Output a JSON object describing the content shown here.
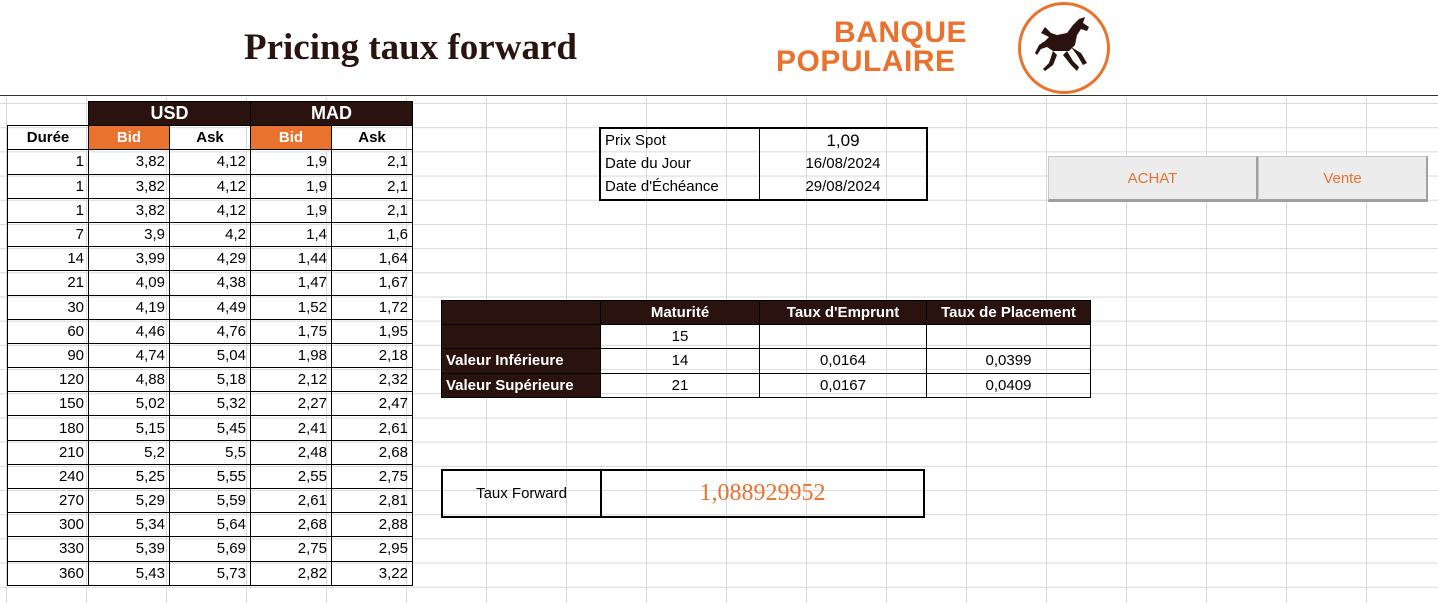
{
  "title": "Pricing taux forward",
  "logo": {
    "line1": "BANQUE",
    "line2": "POPULAIRE",
    "icon": "horse-icon",
    "color": "#e8722e"
  },
  "rates": {
    "duration_header": "Durée",
    "currencies": [
      "USD",
      "MAD"
    ],
    "sub_headers": [
      "Bid",
      "Ask",
      "Bid",
      "Ask"
    ],
    "rows": [
      [
        "1",
        "3,82",
        "4,12",
        "1,9",
        "2,1"
      ],
      [
        "1",
        "3,82",
        "4,12",
        "1,9",
        "2,1"
      ],
      [
        "1",
        "3,82",
        "4,12",
        "1,9",
        "2,1"
      ],
      [
        "7",
        "3,9",
        "4,2",
        "1,4",
        "1,6"
      ],
      [
        "14",
        "3,99",
        "4,29",
        "1,44",
        "1,64"
      ],
      [
        "21",
        "4,09",
        "4,38",
        "1,47",
        "1,67"
      ],
      [
        "30",
        "4,19",
        "4,49",
        "1,52",
        "1,72"
      ],
      [
        "60",
        "4,46",
        "4,76",
        "1,75",
        "1,95"
      ],
      [
        "90",
        "4,74",
        "5,04",
        "1,98",
        "2,18"
      ],
      [
        "120",
        "4,88",
        "5,18",
        "2,12",
        "2,32"
      ],
      [
        "150",
        "5,02",
        "5,32",
        "2,27",
        "2,47"
      ],
      [
        "180",
        "5,15",
        "5,45",
        "2,41",
        "2,61"
      ],
      [
        "210",
        "5,2",
        "5,5",
        "2,48",
        "2,68"
      ],
      [
        "240",
        "5,25",
        "5,55",
        "2,55",
        "2,75"
      ],
      [
        "270",
        "5,29",
        "5,59",
        "2,61",
        "2,81"
      ],
      [
        "300",
        "5,34",
        "5,64",
        "2,68",
        "2,88"
      ],
      [
        "330",
        "5,39",
        "5,69",
        "2,75",
        "2,95"
      ],
      [
        "360",
        "5,43",
        "5,73",
        "2,82",
        "3,22"
      ]
    ]
  },
  "spot": {
    "rows": [
      {
        "label": "Prix Spot",
        "value": "1,09"
      },
      {
        "label": "Date du Jour",
        "value": "16/08/2024"
      },
      {
        "label": "Date d'Échéance",
        "value": "29/08/2024"
      }
    ]
  },
  "buttons": {
    "achat": "ACHAT",
    "vente": "Vente"
  },
  "maturity": {
    "headers": [
      "Maturité",
      "Taux d'Emprunt",
      "Taux de Placement"
    ],
    "current": "15",
    "rows": [
      {
        "label": "Valeur Inférieure",
        "maturite": "14",
        "emprunt": "0,0164",
        "placement": "0,0399"
      },
      {
        "label": "Valeur Supérieure",
        "maturite": "21",
        "emprunt": "0,0167",
        "placement": "0,0409"
      }
    ]
  },
  "forward": {
    "label": "Taux Forward",
    "value": "1,088929952"
  },
  "colors": {
    "accent": "#e8722e",
    "dark": "#2a130e"
  }
}
